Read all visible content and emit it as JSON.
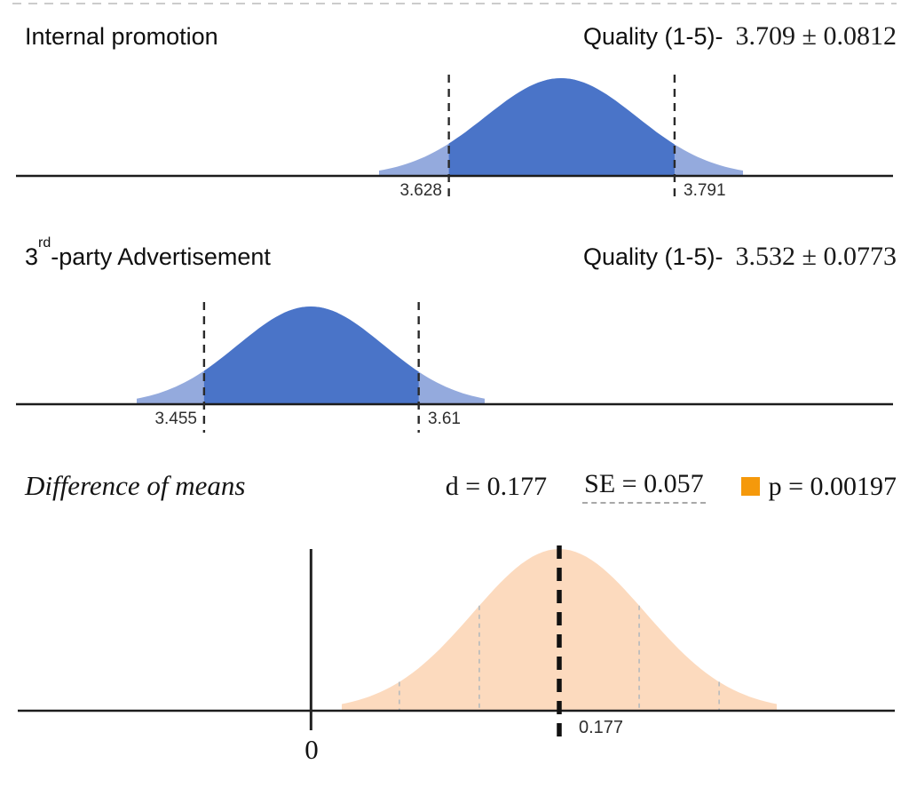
{
  "colors": {
    "curve_blue": "#4a74c8",
    "curve_blue_tail": "#94aadd",
    "curve_peach": "#fcdabe",
    "axis_black": "#1c1c1c",
    "dash_black": "#2a2a2a",
    "dash_gray": "#bdbdbd",
    "orange_marker": "#f5990b",
    "top_border_gray": "#cccccc"
  },
  "panel1": {
    "title": "Internal promotion",
    "metric": "Quality (1-5)-",
    "value": "3.709 ± 0.0812",
    "lo_label": "3.628",
    "hi_label": "3.791"
  },
  "panel2": {
    "title_num": "3",
    "title_sup": "rd",
    "title_rest": "-party Advertisement",
    "metric": "Quality (1-5)-",
    "value": "3.532 ± 0.0773",
    "lo_label": "3.455",
    "hi_label": "3.61"
  },
  "panel3": {
    "title": "Difference of means",
    "d_label": "d = 0.177",
    "se_label": "SE = 0.057",
    "p_label": "p = 0.00197",
    "zero_label": "0",
    "mean_label": "0.177"
  },
  "chart_data": [
    {
      "type": "area",
      "subtype": "normal-distribution",
      "title": "Internal promotion",
      "metric": "Quality (1-5)",
      "mean": 3.709,
      "se": 0.0812,
      "interval": [
        3.628,
        3.791
      ],
      "interval_labels": [
        "3.628",
        "3.791"
      ],
      "legend_position": "none",
      "grid": false
    },
    {
      "type": "area",
      "subtype": "normal-distribution",
      "title": "3rd-party Advertisement",
      "metric": "Quality (1-5)",
      "mean": 3.532,
      "se": 0.0773,
      "interval": [
        3.455,
        3.61
      ],
      "interval_labels": [
        "3.455",
        "3.61"
      ],
      "legend_position": "none",
      "grid": false
    },
    {
      "type": "area",
      "subtype": "normal-distribution",
      "title": "Difference of means",
      "statistic": "difference of means",
      "d": 0.177,
      "se": 0.057,
      "p": 0.00197,
      "baseline_value": 0,
      "marked_mean": 0.177,
      "marked_mean_label": "0.177",
      "zero_label": "0",
      "se_gridline_offsets": [
        -2,
        -1,
        1,
        2
      ],
      "legend_position": "none",
      "grid": false
    }
  ]
}
